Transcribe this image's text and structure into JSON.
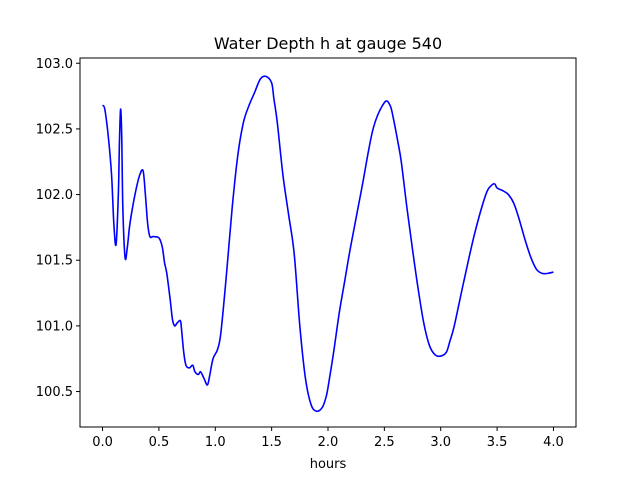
{
  "chart_data": {
    "type": "line",
    "title": "Water Depth h at gauge 540",
    "xlabel": "hours",
    "ylabel": "",
    "xlim": [
      -0.2,
      4.2
    ],
    "ylim": [
      100.23,
      103.04
    ],
    "xticks": [
      0.0,
      0.5,
      1.0,
      1.5,
      2.0,
      2.5,
      3.0,
      3.5,
      4.0
    ],
    "xtick_labels": [
      "0.0",
      "0.5",
      "1.0",
      "1.5",
      "2.0",
      "2.5",
      "3.0",
      "3.5",
      "4.0"
    ],
    "yticks": [
      100.5,
      101.0,
      101.5,
      102.0,
      102.5,
      103.0
    ],
    "ytick_labels": [
      "100.5",
      "101.0",
      "101.5",
      "102.0",
      "102.5",
      "103.0"
    ],
    "grid": false,
    "series": [
      {
        "name": "",
        "color": "#0000ff",
        "x": [
          0.0,
          0.02,
          0.05,
          0.08,
          0.1,
          0.12,
          0.14,
          0.15,
          0.16,
          0.17,
          0.18,
          0.2,
          0.22,
          0.24,
          0.27,
          0.3,
          0.33,
          0.36,
          0.38,
          0.4,
          0.42,
          0.45,
          0.5,
          0.53,
          0.55,
          0.57,
          0.6,
          0.62,
          0.64,
          0.66,
          0.69,
          0.7,
          0.72,
          0.74,
          0.77,
          0.8,
          0.82,
          0.85,
          0.87,
          0.9,
          0.93,
          0.95,
          0.98,
          1.02,
          1.05,
          1.1,
          1.15,
          1.2,
          1.25,
          1.3,
          1.35,
          1.4,
          1.45,
          1.5,
          1.52,
          1.55,
          1.6,
          1.65,
          1.7,
          1.75,
          1.8,
          1.85,
          1.9,
          1.95,
          1.98,
          2.0,
          2.05,
          2.1,
          2.15,
          2.2,
          2.3,
          2.4,
          2.5,
          2.55,
          2.58,
          2.62,
          2.65,
          2.7,
          2.75,
          2.8,
          2.85,
          2.9,
          2.95,
          3.0,
          3.05,
          3.08,
          3.12,
          3.2,
          3.3,
          3.4,
          3.45,
          3.48,
          3.5,
          3.55,
          3.6,
          3.65,
          3.7,
          3.75,
          3.8,
          3.85,
          3.9,
          3.95,
          4.0
        ],
        "y": [
          102.68,
          102.65,
          102.45,
          102.15,
          101.78,
          101.62,
          102.0,
          102.4,
          102.65,
          102.45,
          101.9,
          101.52,
          101.6,
          101.76,
          101.92,
          102.05,
          102.15,
          102.18,
          102.0,
          101.78,
          101.68,
          101.68,
          101.67,
          101.6,
          101.48,
          101.4,
          101.2,
          101.05,
          101.0,
          101.02,
          101.04,
          100.98,
          100.8,
          100.7,
          100.68,
          100.7,
          100.65,
          100.63,
          100.65,
          100.6,
          100.55,
          100.62,
          100.75,
          100.82,
          100.95,
          101.4,
          101.9,
          102.3,
          102.55,
          102.68,
          102.78,
          102.88,
          102.9,
          102.85,
          102.73,
          102.55,
          102.15,
          101.85,
          101.55,
          101.0,
          100.6,
          100.4,
          100.35,
          100.38,
          100.45,
          100.53,
          100.8,
          101.1,
          101.35,
          101.6,
          102.05,
          102.5,
          102.7,
          102.68,
          102.58,
          102.4,
          102.25,
          101.9,
          101.58,
          101.28,
          101.02,
          100.85,
          100.78,
          100.77,
          100.8,
          100.88,
          101.0,
          101.32,
          101.7,
          102.0,
          102.07,
          102.08,
          102.05,
          102.03,
          102.0,
          101.93,
          101.8,
          101.65,
          101.52,
          101.43,
          101.4,
          101.4,
          101.41
        ]
      }
    ]
  }
}
